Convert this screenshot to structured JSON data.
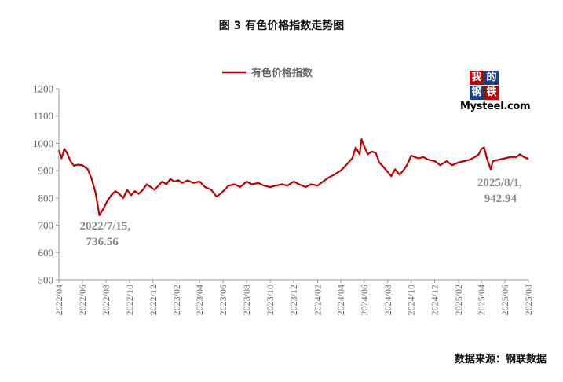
{
  "figure_title": "图 3 有色价格指数走势图",
  "source": "数据来源：钢联数据",
  "logo": {
    "chars": [
      "我",
      "的",
      "钢",
      "铁"
    ],
    "wordmark": "Mysteel.com"
  },
  "colors": {
    "series": "#c00000",
    "axis": "#999999",
    "text": "#666666",
    "annotation": "#888888"
  },
  "chart_data": {
    "type": "line",
    "title": "",
    "xlabel": "",
    "ylabel": "",
    "ylim": [
      500,
      1200
    ],
    "yticks": [
      "500",
      "600",
      "700",
      "800",
      "900",
      "1000",
      "1100",
      "1200"
    ],
    "xlim": [
      "2022-04-01",
      "2025-08-01"
    ],
    "xticks": [
      "2022/04",
      "2022/06",
      "2022/08",
      "2022/10",
      "2022/12",
      "2023/02",
      "2023/04",
      "2023/06",
      "2023/08",
      "2023/10",
      "2023/12",
      "2024/02",
      "2024/04",
      "2024/06",
      "2024/08",
      "2024/10",
      "2024/12",
      "2025/02",
      "2025/04",
      "2025/06",
      "2025/08"
    ],
    "grid": false,
    "legend": {
      "position": "top-center",
      "entries": [
        "有色价格指数"
      ]
    },
    "series": [
      {
        "name": "有色价格指数",
        "x": [
          "2022-04-01",
          "2022-04-08",
          "2022-04-15",
          "2022-04-22",
          "2022-05-01",
          "2022-05-10",
          "2022-05-20",
          "2022-06-01",
          "2022-06-15",
          "2022-06-25",
          "2022-07-05",
          "2022-07-15",
          "2022-07-25",
          "2022-08-05",
          "2022-08-15",
          "2022-08-25",
          "2022-09-05",
          "2022-09-15",
          "2022-09-25",
          "2022-10-05",
          "2022-10-15",
          "2022-10-25",
          "2022-11-05",
          "2022-11-15",
          "2022-11-25",
          "2022-12-05",
          "2022-12-15",
          "2022-12-25",
          "2023-01-05",
          "2023-01-15",
          "2023-01-25",
          "2023-02-05",
          "2023-02-15",
          "2023-03-01",
          "2023-03-15",
          "2023-04-01",
          "2023-04-15",
          "2023-05-01",
          "2023-05-15",
          "2023-05-25",
          "2023-06-05",
          "2023-06-15",
          "2023-07-01",
          "2023-07-15",
          "2023-08-01",
          "2023-08-15",
          "2023-09-01",
          "2023-09-15",
          "2023-10-01",
          "2023-10-15",
          "2023-11-01",
          "2023-11-15",
          "2023-12-01",
          "2023-12-15",
          "2024-01-01",
          "2024-01-15",
          "2024-02-01",
          "2024-02-15",
          "2024-03-01",
          "2024-03-15",
          "2024-04-01",
          "2024-04-15",
          "2024-05-01",
          "2024-05-10",
          "2024-05-20",
          "2024-05-25",
          "2024-06-01",
          "2024-06-10",
          "2024-06-20",
          "2024-07-01",
          "2024-07-10",
          "2024-07-20",
          "2024-08-01",
          "2024-08-10",
          "2024-08-20",
          "2024-09-01",
          "2024-09-10",
          "2024-09-20",
          "2024-10-01",
          "2024-10-10",
          "2024-10-20",
          "2024-11-01",
          "2024-11-15",
          "2024-12-01",
          "2024-12-15",
          "2025-01-01",
          "2025-01-15",
          "2025-02-01",
          "2025-02-15",
          "2025-03-01",
          "2025-03-15",
          "2025-03-25",
          "2025-04-01",
          "2025-04-08",
          "2025-04-15",
          "2025-04-25",
          "2025-05-01",
          "2025-05-15",
          "2025-06-01",
          "2025-06-15",
          "2025-07-01",
          "2025-07-10",
          "2025-07-20",
          "2025-08-01"
        ],
        "y": [
          975,
          945,
          980,
          965,
          935,
          918,
          922,
          920,
          905,
          870,
          820,
          736.56,
          760,
          790,
          810,
          825,
          815,
          800,
          830,
          810,
          825,
          815,
          830,
          850,
          840,
          830,
          845,
          860,
          850,
          870,
          860,
          865,
          855,
          865,
          855,
          860,
          840,
          830,
          805,
          815,
          830,
          845,
          850,
          840,
          860,
          850,
          855,
          845,
          840,
          845,
          850,
          845,
          860,
          850,
          840,
          850,
          845,
          860,
          875,
          885,
          900,
          920,
          945,
          985,
          960,
          1015,
          990,
          960,
          970,
          965,
          930,
          915,
          895,
          880,
          905,
          885,
          900,
          920,
          955,
          950,
          945,
          950,
          940,
          935,
          920,
          935,
          920,
          930,
          935,
          940,
          950,
          960,
          980,
          985,
          945,
          905,
          935,
          940,
          945,
          950,
          950,
          960,
          950,
          942.94
        ]
      }
    ],
    "annotations": [
      {
        "line1": "2022/7/15,",
        "line2": "736.56",
        "x": "2022-07-15",
        "y": 736.56
      },
      {
        "line1": "2025/8/1,",
        "line2": "942.94",
        "x": "2025-08-01",
        "y": 942.94
      }
    ]
  }
}
